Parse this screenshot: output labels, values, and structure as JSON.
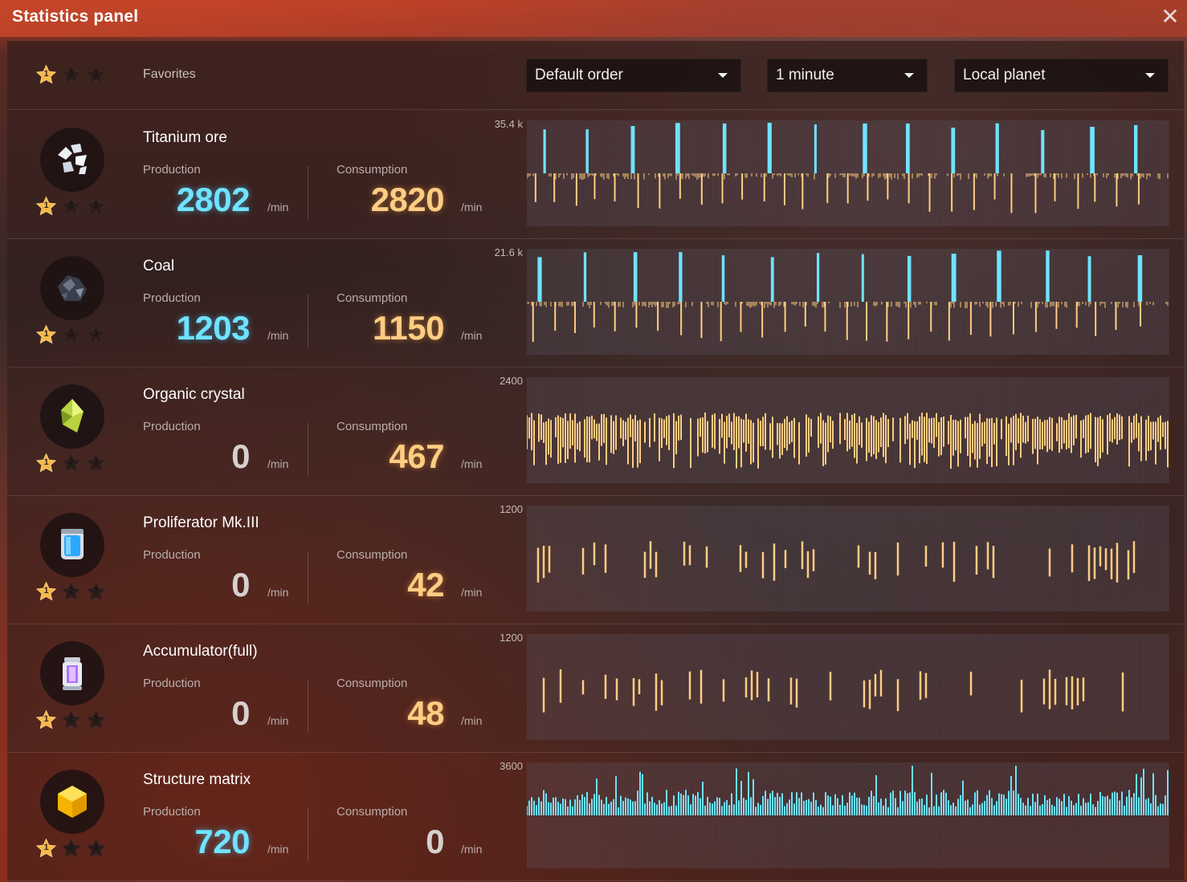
{
  "window": {
    "title": "Statistics panel",
    "close_icon": "close-icon"
  },
  "favorites": {
    "label": "Favorites",
    "stars": [
      "1",
      "2",
      "3"
    ]
  },
  "filters": {
    "sort_order": "Default order",
    "time_range": "1 minute",
    "scope": "Local planet"
  },
  "labels": {
    "production": "Production",
    "consumption": "Consumption",
    "unit": "/min"
  },
  "colors": {
    "production": "#6fe3ff",
    "consumption": "#ffcd82",
    "star_active": "#f7b84a",
    "star_inactive": "#2a1c1a"
  },
  "items": [
    {
      "name": "Titanium ore",
      "icon": "titanium-ore-icon",
      "production": "2802",
      "consumption": "2820",
      "chart_max": "35.4 k",
      "stars": [
        "1",
        "2",
        "3"
      ]
    },
    {
      "name": "Coal",
      "icon": "coal-icon",
      "production": "1203",
      "consumption": "1150",
      "chart_max": "21.6 k",
      "stars": [
        "1",
        "2",
        "3"
      ]
    },
    {
      "name": "Organic crystal",
      "icon": "organic-crystal-icon",
      "production": "0",
      "consumption": "467",
      "chart_max": "2400",
      "stars": [
        "1",
        "2",
        "3"
      ]
    },
    {
      "name": "Proliferator Mk.III",
      "icon": "proliferator-icon",
      "production": "0",
      "consumption": "42",
      "chart_max": "1200",
      "stars": [
        "1",
        "2",
        "3"
      ]
    },
    {
      "name": "Accumulator(full)",
      "icon": "accumulator-icon",
      "production": "0",
      "consumption": "48",
      "chart_max": "1200",
      "stars": [
        "1",
        "2",
        "3"
      ]
    },
    {
      "name": "Structure matrix",
      "icon": "structure-matrix-icon",
      "production": "720",
      "consumption": "0",
      "chart_max": "3600",
      "stars": [
        "1",
        "2",
        "3"
      ]
    }
  ]
}
